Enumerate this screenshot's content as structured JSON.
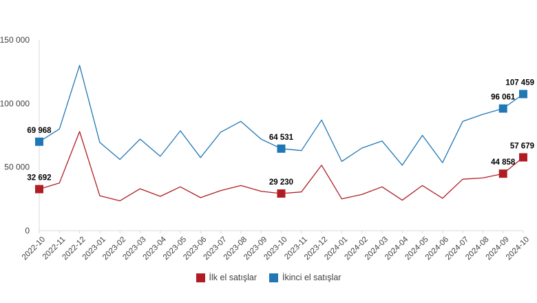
{
  "chart_data": {
    "type": "line",
    "title": "",
    "xlabel": "",
    "ylabel": "",
    "ylim": [
      0,
      150000
    ],
    "yticks": [
      {
        "value": 0,
        "label": "0"
      },
      {
        "value": 50000,
        "label": "50 000"
      },
      {
        "value": 100000,
        "label": "100 000"
      },
      {
        "value": 150000,
        "label": "150 000"
      }
    ],
    "categories": [
      "2022-10",
      "2022-11",
      "2022-12",
      "2023-01",
      "2023-02",
      "2023-03",
      "2023-04",
      "2023-05",
      "2023-06",
      "2023-07",
      "2023-08",
      "2023-09",
      "2023-10",
      "2023-11",
      "2023-12",
      "2024-01",
      "2024-02",
      "2024-03",
      "2024-04",
      "2024-05",
      "2024-06",
      "2024-07",
      "2024-08",
      "2024-09",
      "2024-10"
    ],
    "grid": false,
    "legend_position": "bottom",
    "series": [
      {
        "name": "İlk el satışlar",
        "color": "#b01c24",
        "values": [
          32692,
          37500,
          78000,
          27500,
          23500,
          33000,
          27000,
          34500,
          26000,
          31500,
          35500,
          31000,
          29230,
          30500,
          51500,
          25000,
          28500,
          34500,
          24000,
          35500,
          25500,
          40500,
          41500,
          44858,
          57679
        ],
        "markers": [
          {
            "index": 0,
            "label": "32 692"
          },
          {
            "index": 12,
            "label": "29 230"
          },
          {
            "index": 23,
            "label": "44 858"
          },
          {
            "index": 24,
            "label": "57 679"
          }
        ]
      },
      {
        "name": "İkinci el satışlar",
        "color": "#1f77b4",
        "values": [
          69968,
          80000,
          130000,
          69500,
          56000,
          72000,
          58500,
          78500,
          57500,
          77500,
          86000,
          72000,
          64531,
          63000,
          87000,
          54500,
          65000,
          70500,
          51500,
          75000,
          53500,
          86000,
          91500,
          96061,
          107459
        ],
        "markers": [
          {
            "index": 0,
            "label": "69 968"
          },
          {
            "index": 12,
            "label": "64 531"
          },
          {
            "index": 23,
            "label": "96 061"
          },
          {
            "index": 24,
            "label": "107 459"
          }
        ]
      }
    ]
  },
  "colors": {
    "axis": "#d9d9d9",
    "text": "#404040",
    "label": "#000000"
  }
}
